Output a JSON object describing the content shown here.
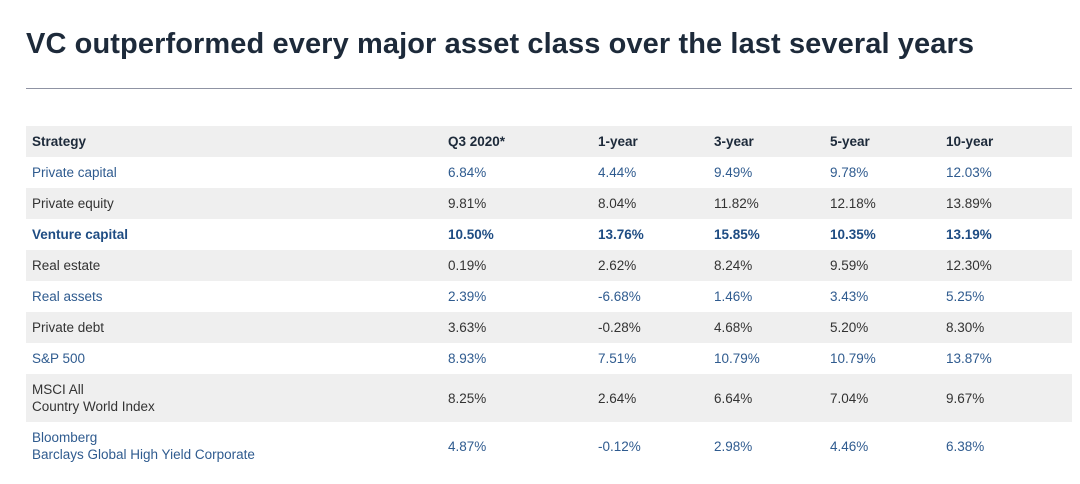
{
  "title": "VC outperformed every major asset class over the last several years",
  "table": {
    "headers": [
      "Strategy",
      "Q3 2020*",
      "1-year",
      "3-year",
      "5-year",
      "10-year"
    ],
    "rows": [
      {
        "strategy": [
          "Private capital"
        ],
        "values": [
          "6.84%",
          "4.44%",
          "9.49%",
          "9.78%",
          "12.03%"
        ]
      },
      {
        "strategy": [
          "Private equity"
        ],
        "values": [
          "9.81%",
          "8.04%",
          "11.82%",
          "12.18%",
          "13.89%"
        ]
      },
      {
        "strategy": [
          "Venture capital"
        ],
        "values": [
          "10.50%",
          "13.76%",
          "15.85%",
          "10.35%",
          "13.19%"
        ]
      },
      {
        "strategy": [
          "Real estate"
        ],
        "values": [
          "0.19%",
          "2.62%",
          "8.24%",
          "9.59%",
          "12.30%"
        ]
      },
      {
        "strategy": [
          "Real assets"
        ],
        "values": [
          "2.39%",
          "-6.68%",
          "1.46%",
          "3.43%",
          "5.25%"
        ]
      },
      {
        "strategy": [
          "Private debt"
        ],
        "values": [
          "3.63%",
          "-0.28%",
          "4.68%",
          "5.20%",
          "8.30%"
        ]
      },
      {
        "strategy": [
          "S&P 500"
        ],
        "values": [
          "8.93%",
          "7.51%",
          "10.79%",
          "10.79%",
          "13.87%"
        ]
      },
      {
        "strategy": [
          "MSCI All",
          "Country World Index"
        ],
        "values": [
          "8.25%",
          "2.64%",
          "6.64%",
          "7.04%",
          "9.67%"
        ]
      },
      {
        "strategy": [
          "Bloomberg",
          "Barclays Global High Yield Corporate"
        ],
        "values": [
          "4.87%",
          "-0.12%",
          "2.98%",
          "4.46%",
          "6.38%"
        ]
      }
    ]
  }
}
